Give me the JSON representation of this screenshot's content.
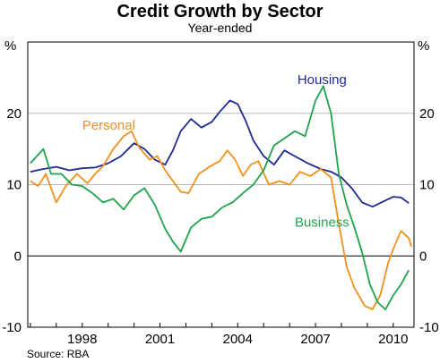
{
  "chart_data": {
    "type": "line",
    "title": "Credit Growth by Sector",
    "subtitle": "Year-ended",
    "ylabel_left": "%",
    "ylabel_right": "%",
    "source": "Source: RBA",
    "ylim": [
      -10,
      30
    ],
    "yticks": [
      -10,
      0,
      10,
      20
    ],
    "xlim": [
      1995.9,
      2010.8
    ],
    "xticks": [
      {
        "value": 1998,
        "label": "1998"
      },
      {
        "value": 2001,
        "label": "2001"
      },
      {
        "value": 2004,
        "label": "2004"
      },
      {
        "value": 2007,
        "label": "2007"
      },
      {
        "value": 2010,
        "label": "2010"
      }
    ],
    "grid": true,
    "series": [
      {
        "name": "Housing",
        "color": "#1f2a8f",
        "points": [
          [
            1996.0,
            11.8
          ],
          [
            1996.5,
            12.2
          ],
          [
            1997.0,
            12.5
          ],
          [
            1997.5,
            12.0
          ],
          [
            1998.0,
            12.3
          ],
          [
            1998.5,
            12.4
          ],
          [
            1999.0,
            13.0
          ],
          [
            1999.5,
            14.0
          ],
          [
            2000.0,
            15.8
          ],
          [
            2000.4,
            15.0
          ],
          [
            2000.8,
            13.5
          ],
          [
            2001.2,
            12.8
          ],
          [
            2001.5,
            14.8
          ],
          [
            2001.8,
            17.5
          ],
          [
            2002.2,
            19.2
          ],
          [
            2002.6,
            18.0
          ],
          [
            2003.0,
            18.8
          ],
          [
            2003.3,
            20.2
          ],
          [
            2003.7,
            21.8
          ],
          [
            2004.0,
            21.3
          ],
          [
            2004.3,
            19.0
          ],
          [
            2004.6,
            16.2
          ],
          [
            2005.0,
            14.0
          ],
          [
            2005.4,
            12.8
          ],
          [
            2005.8,
            14.8
          ],
          [
            2006.2,
            14.0
          ],
          [
            2006.7,
            13.0
          ],
          [
            2007.2,
            12.2
          ],
          [
            2007.6,
            11.8
          ],
          [
            2008.0,
            11.0
          ],
          [
            2008.4,
            9.5
          ],
          [
            2008.8,
            7.5
          ],
          [
            2009.2,
            6.9
          ],
          [
            2009.6,
            7.6
          ],
          [
            2010.0,
            8.3
          ],
          [
            2010.3,
            8.2
          ],
          [
            2010.6,
            7.4
          ]
        ]
      },
      {
        "name": "Personal",
        "color": "#f0901e",
        "points": [
          [
            1996.0,
            10.5
          ],
          [
            1996.3,
            9.8
          ],
          [
            1996.6,
            11.5
          ],
          [
            1997.0,
            7.5
          ],
          [
            1997.4,
            10.0
          ],
          [
            1997.8,
            11.5
          ],
          [
            1998.2,
            10.2
          ],
          [
            1998.5,
            11.5
          ],
          [
            1998.8,
            12.6
          ],
          [
            1999.2,
            15.0
          ],
          [
            1999.6,
            16.8
          ],
          [
            1999.9,
            17.5
          ],
          [
            2000.2,
            15.2
          ],
          [
            2000.6,
            13.5
          ],
          [
            2000.9,
            14.0
          ],
          [
            2001.2,
            12.0
          ],
          [
            2001.5,
            10.5
          ],
          [
            2001.8,
            9.0
          ],
          [
            2002.1,
            8.8
          ],
          [
            2002.5,
            11.5
          ],
          [
            2002.9,
            12.5
          ],
          [
            2003.3,
            13.3
          ],
          [
            2003.6,
            14.8
          ],
          [
            2003.9,
            13.5
          ],
          [
            2004.2,
            11.2
          ],
          [
            2004.5,
            12.8
          ],
          [
            2004.8,
            13.3
          ],
          [
            2005.2,
            10.0
          ],
          [
            2005.6,
            10.5
          ],
          [
            2006.0,
            10.0
          ],
          [
            2006.4,
            11.8
          ],
          [
            2006.8,
            11.2
          ],
          [
            2007.2,
            12.2
          ],
          [
            2007.6,
            11.0
          ],
          [
            2007.9,
            4.5
          ],
          [
            2008.2,
            -1.5
          ],
          [
            2008.5,
            -4.5
          ],
          [
            2008.9,
            -7.0
          ],
          [
            2009.2,
            -7.5
          ],
          [
            2009.5,
            -5.5
          ],
          [
            2009.8,
            -1.0
          ],
          [
            2010.0,
            1.0
          ],
          [
            2010.3,
            3.5
          ],
          [
            2010.6,
            2.5
          ],
          [
            2010.7,
            1.3
          ]
        ]
      },
      {
        "name": "Business",
        "color": "#1ea34a",
        "points": [
          [
            1996.0,
            13.0
          ],
          [
            1996.5,
            15.0
          ],
          [
            1996.8,
            11.5
          ],
          [
            1997.2,
            11.5
          ],
          [
            1997.6,
            10.0
          ],
          [
            1998.0,
            9.8
          ],
          [
            1998.4,
            8.8
          ],
          [
            1998.8,
            7.5
          ],
          [
            1999.2,
            8.0
          ],
          [
            1999.6,
            6.5
          ],
          [
            2000.0,
            8.5
          ],
          [
            2000.4,
            9.5
          ],
          [
            2000.8,
            7.2
          ],
          [
            2001.2,
            3.8
          ],
          [
            2001.5,
            2.0
          ],
          [
            2001.8,
            0.6
          ],
          [
            2002.2,
            4.0
          ],
          [
            2002.6,
            5.2
          ],
          [
            2003.0,
            5.5
          ],
          [
            2003.4,
            6.8
          ],
          [
            2003.8,
            7.5
          ],
          [
            2004.2,
            8.8
          ],
          [
            2004.6,
            10.0
          ],
          [
            2005.0,
            12.0
          ],
          [
            2005.4,
            15.5
          ],
          [
            2005.8,
            16.5
          ],
          [
            2006.2,
            17.5
          ],
          [
            2006.6,
            16.8
          ],
          [
            2007.0,
            21.8
          ],
          [
            2007.3,
            23.8
          ],
          [
            2007.6,
            20.0
          ],
          [
            2007.9,
            11.5
          ],
          [
            2008.2,
            7.2
          ],
          [
            2008.5,
            4.0
          ],
          [
            2008.8,
            0.5
          ],
          [
            2009.1,
            -4.0
          ],
          [
            2009.4,
            -6.5
          ],
          [
            2009.7,
            -7.5
          ],
          [
            2010.0,
            -5.5
          ],
          [
            2010.3,
            -4.0
          ],
          [
            2010.6,
            -2.0
          ]
        ]
      }
    ],
    "annotations": [
      {
        "text": "Housing",
        "series": "Housing",
        "x": 2006.3,
        "y": 24.1
      },
      {
        "text": "Personal",
        "series": "Personal",
        "x": 1998.0,
        "y": 17.7
      },
      {
        "text": "Business",
        "series": "Business",
        "x": 2006.2,
        "y": 4.1
      }
    ]
  }
}
